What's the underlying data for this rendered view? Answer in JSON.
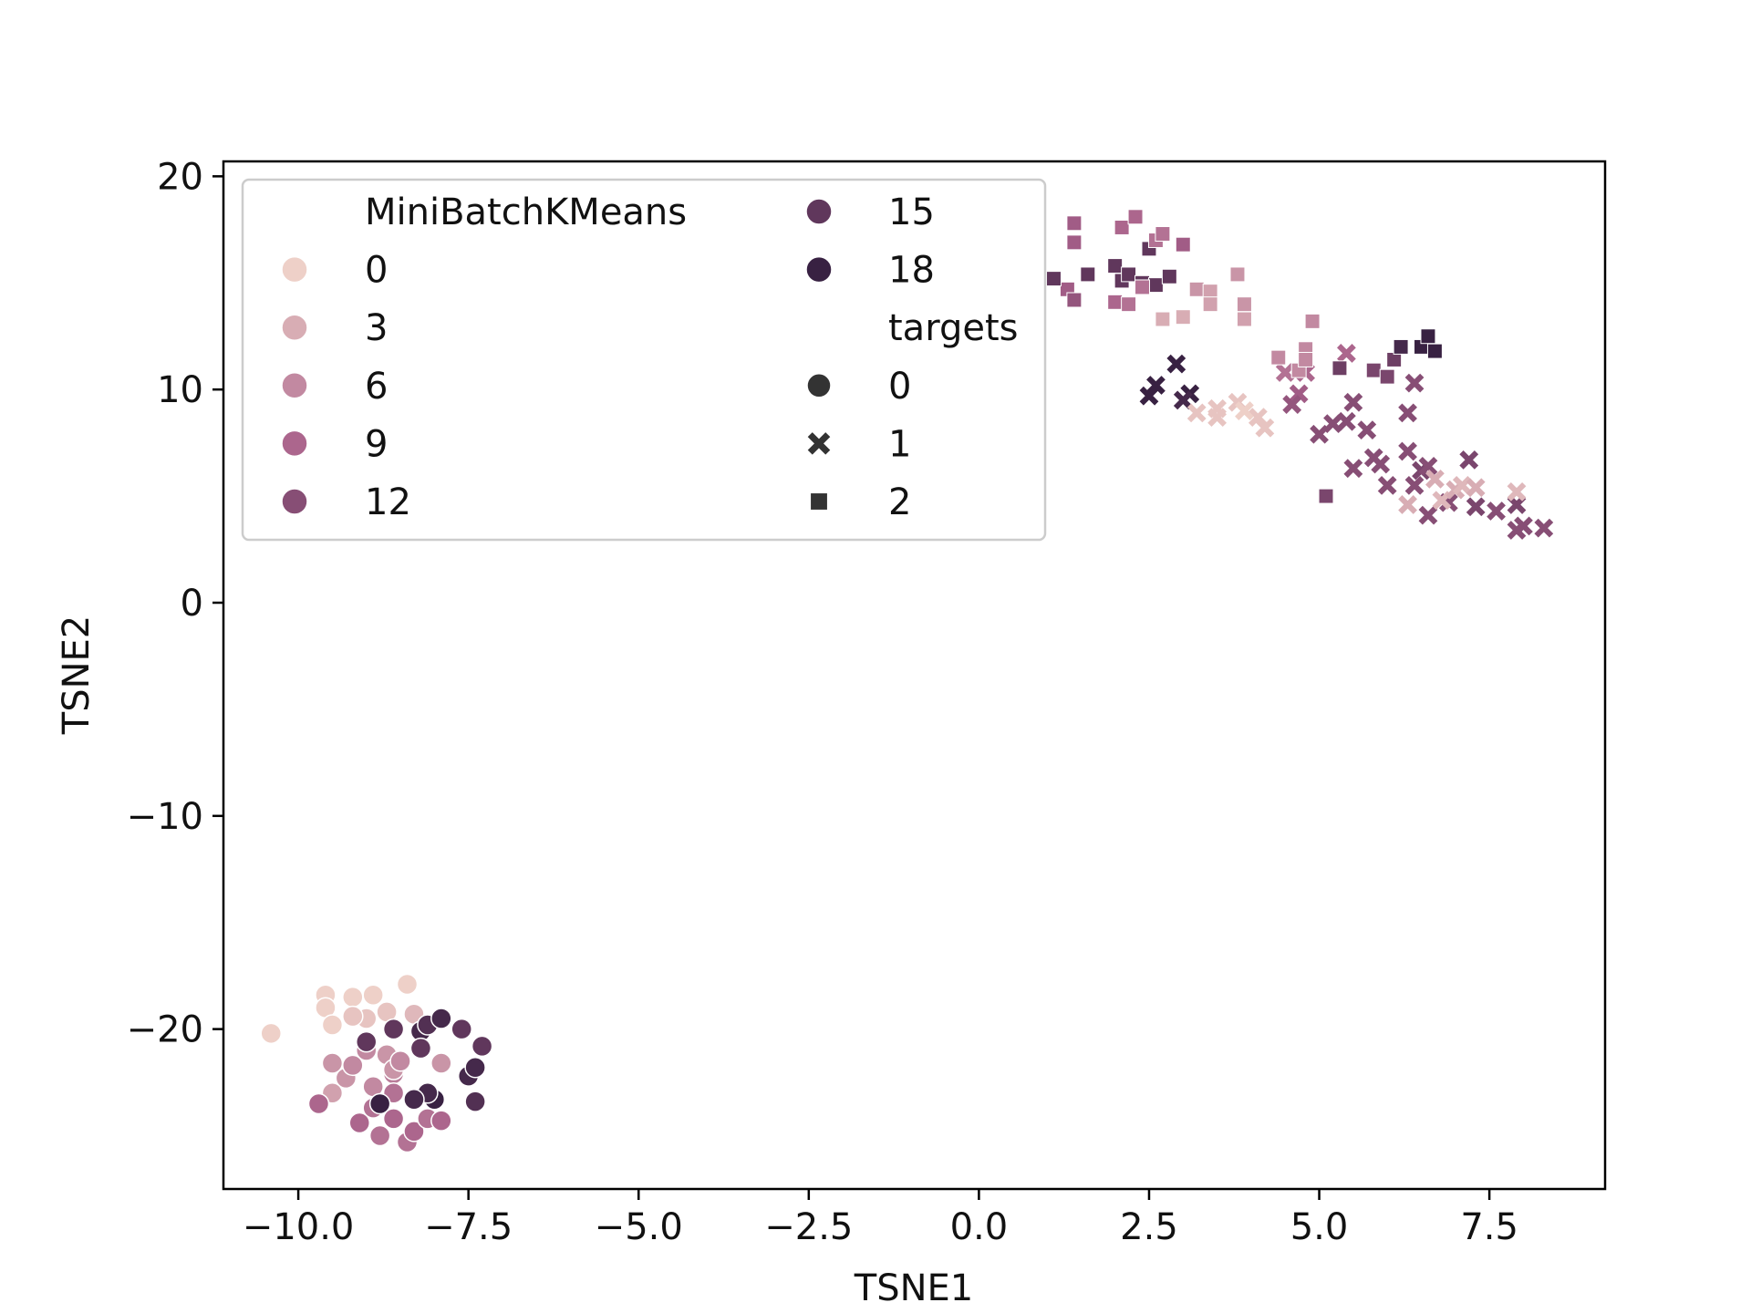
{
  "chart_data": {
    "type": "scatter",
    "xlabel": "TSNE1",
    "ylabel": "TSNE2",
    "xlim": [
      -11.1,
      9.2
    ],
    "ylim": [
      -27.5,
      20.7
    ],
    "xticks": [
      -10.0,
      -7.5,
      -5.0,
      -2.5,
      0.0,
      2.5,
      5.0,
      7.5
    ],
    "xtick_labels": [
      "−10.0",
      "−7.5",
      "−5.0",
      "−2.5",
      "0.0",
      "2.5",
      "5.0",
      "7.5"
    ],
    "yticks": [
      20,
      10,
      0,
      -10,
      -20
    ],
    "ytick_labels": [
      "20",
      "10",
      "0",
      "−10",
      "−20"
    ],
    "grid": false,
    "hue_field": "MiniBatchKMeans",
    "style_field": "targets",
    "hue_scale": {
      "min": 0,
      "max": 19,
      "low_color": "#eed0c8",
      "high_color": "#2b1a3a"
    },
    "legend": {
      "placement": "top-left",
      "hue_title": "MiniBatchKMeans",
      "hue_entries": [
        {
          "label": "0",
          "value": 0
        },
        {
          "label": "3",
          "value": 3
        },
        {
          "label": "6",
          "value": 6
        },
        {
          "label": "9",
          "value": 9
        },
        {
          "label": "12",
          "value": 12
        },
        {
          "label": "15",
          "value": 15
        },
        {
          "label": "18",
          "value": 18
        }
      ],
      "style_title": "targets",
      "style_entries": [
        {
          "label": "0",
          "marker": "circle"
        },
        {
          "label": "1",
          "marker": "x"
        },
        {
          "label": "2",
          "marker": "square"
        }
      ]
    },
    "series": [
      {
        "target": 0,
        "marker": "circle",
        "points": [
          [
            -10.4,
            -20.2,
            0
          ],
          [
            -9.6,
            -18.4,
            0
          ],
          [
            -9.6,
            -19.0,
            0
          ],
          [
            -9.5,
            -19.8,
            0
          ],
          [
            -9.2,
            -18.5,
            0
          ],
          [
            -9.0,
            -19.5,
            1
          ],
          [
            -8.9,
            -18.4,
            0
          ],
          [
            -8.7,
            -19.2,
            1
          ],
          [
            -8.4,
            -17.9,
            0
          ],
          [
            -8.3,
            -19.3,
            2
          ],
          [
            -9.2,
            -19.4,
            1
          ],
          [
            -9.5,
            -21.6,
            5
          ],
          [
            -9.3,
            -22.3,
            5
          ],
          [
            -9.5,
            -23.0,
            4
          ],
          [
            -9.2,
            -21.7,
            6
          ],
          [
            -8.9,
            -22.7,
            6
          ],
          [
            -8.7,
            -21.2,
            5
          ],
          [
            -8.6,
            -22.1,
            7
          ],
          [
            -8.6,
            -21.9,
            5
          ],
          [
            -8.5,
            -21.5,
            6
          ],
          [
            -7.9,
            -21.6,
            5
          ],
          [
            -9.0,
            -21.0,
            6
          ],
          [
            -9.7,
            -23.5,
            9
          ],
          [
            -9.1,
            -24.4,
            9
          ],
          [
            -8.8,
            -25.0,
            8
          ],
          [
            -8.9,
            -23.7,
            8
          ],
          [
            -8.6,
            -24.2,
            9
          ],
          [
            -8.4,
            -25.3,
            8
          ],
          [
            -8.3,
            -24.8,
            9
          ],
          [
            -8.1,
            -24.2,
            8
          ],
          [
            -7.9,
            -24.3,
            9
          ],
          [
            -8.6,
            -23.0,
            8
          ],
          [
            -9.0,
            -20.6,
            15
          ],
          [
            -8.6,
            -20.0,
            15
          ],
          [
            -8.2,
            -20.1,
            17
          ],
          [
            -8.2,
            -20.9,
            15
          ],
          [
            -8.1,
            -19.8,
            16
          ],
          [
            -7.9,
            -19.5,
            17
          ],
          [
            -7.6,
            -20.0,
            15
          ],
          [
            -7.5,
            -22.2,
            17
          ],
          [
            -7.3,
            -20.8,
            15
          ],
          [
            -7.4,
            -21.8,
            17
          ],
          [
            -7.4,
            -23.4,
            16
          ],
          [
            -8.0,
            -23.3,
            18
          ],
          [
            -8.1,
            -23.0,
            17
          ],
          [
            -8.3,
            -23.3,
            17
          ],
          [
            -8.8,
            -23.5,
            18
          ]
        ]
      },
      {
        "target": 1,
        "marker": "x",
        "points": [
          [
            2.6,
            10.2,
            18
          ],
          [
            2.5,
            9.7,
            18
          ],
          [
            2.9,
            11.2,
            18
          ],
          [
            3.1,
            9.8,
            18
          ],
          [
            3.0,
            9.5,
            17
          ],
          [
            3.2,
            8.9,
            1
          ],
          [
            3.5,
            9.1,
            1
          ],
          [
            3.5,
            8.7,
            1
          ],
          [
            3.8,
            9.4,
            1
          ],
          [
            4.1,
            8.7,
            1
          ],
          [
            4.2,
            8.2,
            1
          ],
          [
            3.9,
            9.0,
            0
          ],
          [
            4.5,
            10.8,
            8
          ],
          [
            4.7,
            9.8,
            10
          ],
          [
            4.8,
            10.8,
            9
          ],
          [
            5.4,
            11.7,
            9
          ],
          [
            4.6,
            9.3,
            11
          ],
          [
            5.0,
            7.9,
            12
          ],
          [
            5.2,
            8.4,
            12
          ],
          [
            5.4,
            8.5,
            12
          ],
          [
            5.5,
            9.4,
            12
          ],
          [
            5.7,
            8.1,
            12
          ],
          [
            5.5,
            6.3,
            12
          ],
          [
            5.8,
            6.8,
            12
          ],
          [
            5.9,
            6.5,
            12
          ],
          [
            6.0,
            5.5,
            12
          ],
          [
            6.3,
            8.9,
            12
          ],
          [
            6.4,
            10.3,
            12
          ],
          [
            6.3,
            7.1,
            12
          ],
          [
            6.5,
            6.2,
            13
          ],
          [
            6.6,
            6.4,
            12
          ],
          [
            6.4,
            5.5,
            12
          ],
          [
            6.6,
            4.1,
            12
          ],
          [
            6.9,
            4.7,
            12
          ],
          [
            7.2,
            6.7,
            13
          ],
          [
            7.3,
            4.5,
            13
          ],
          [
            7.6,
            4.3,
            12
          ],
          [
            7.9,
            3.4,
            12
          ],
          [
            7.9,
            4.6,
            13
          ],
          [
            8.0,
            3.6,
            12
          ],
          [
            8.3,
            3.5,
            12
          ],
          [
            6.3,
            4.6,
            3
          ],
          [
            6.7,
            5.8,
            3
          ],
          [
            6.8,
            4.8,
            2
          ],
          [
            7.0,
            5.3,
            3
          ],
          [
            7.1,
            5.5,
            2
          ],
          [
            7.3,
            5.4,
            3
          ],
          [
            7.9,
            5.2,
            2
          ]
        ]
      },
      {
        "target": 2,
        "marker": "square",
        "points": [
          [
            1.4,
            17.8,
            10
          ],
          [
            1.4,
            16.9,
            10
          ],
          [
            1.3,
            14.7,
            10
          ],
          [
            1.4,
            14.2,
            11
          ],
          [
            1.1,
            15.2,
            15
          ],
          [
            1.6,
            15.4,
            15
          ],
          [
            2.0,
            15.8,
            15
          ],
          [
            2.1,
            15.1,
            15
          ],
          [
            2.2,
            15.4,
            15
          ],
          [
            2.4,
            15.0,
            15
          ],
          [
            2.5,
            16.6,
            15
          ],
          [
            2.6,
            14.9,
            15
          ],
          [
            2.8,
            15.3,
            15
          ],
          [
            2.0,
            14.1,
            9
          ],
          [
            2.1,
            17.6,
            9
          ],
          [
            2.3,
            18.1,
            9
          ],
          [
            2.6,
            17.0,
            8
          ],
          [
            2.7,
            17.3,
            8
          ],
          [
            2.4,
            14.8,
            8
          ],
          [
            2.2,
            14.0,
            8
          ],
          [
            3.0,
            16.8,
            10
          ],
          [
            3.2,
            14.7,
            5
          ],
          [
            3.4,
            14.6,
            4
          ],
          [
            3.4,
            14.0,
            4
          ],
          [
            3.8,
            15.4,
            5
          ],
          [
            3.9,
            14.0,
            5
          ],
          [
            3.9,
            13.3,
            4
          ],
          [
            2.7,
            13.3,
            3
          ],
          [
            3.0,
            13.4,
            3
          ],
          [
            4.4,
            11.5,
            6
          ],
          [
            4.7,
            10.9,
            6
          ],
          [
            4.8,
            11.9,
            6
          ],
          [
            4.8,
            11.4,
            6
          ],
          [
            4.9,
            13.2,
            6
          ],
          [
            5.1,
            5.0,
            13
          ],
          [
            5.3,
            11.0,
            14
          ],
          [
            5.8,
            10.9,
            13
          ],
          [
            6.0,
            10.6,
            13
          ],
          [
            6.1,
            11.4,
            14
          ],
          [
            6.2,
            12.0,
            17
          ],
          [
            6.5,
            12.0,
            18
          ],
          [
            6.6,
            12.5,
            18
          ],
          [
            6.7,
            11.8,
            18
          ]
        ]
      }
    ]
  }
}
